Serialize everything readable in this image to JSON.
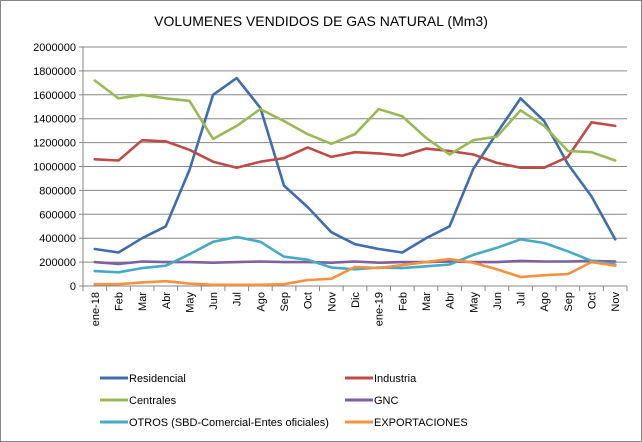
{
  "chart_data": {
    "type": "line",
    "title": "VOLUMENES VENDIDOS DE GAS NATURAL (Mm3)",
    "xlabel": "",
    "ylabel": "",
    "ylim": [
      0,
      2000000
    ],
    "yticks": [
      "0",
      "200000",
      "400000",
      "600000",
      "800000",
      "1000000",
      "1200000",
      "1400000",
      "1600000",
      "1800000",
      "2000000"
    ],
    "grid": true,
    "legend_position": "bottom",
    "categories": [
      "ene-18",
      "Feb",
      "Mar",
      "Abr",
      "May",
      "Jun",
      "Jul",
      "Ago",
      "Sep",
      "Oct",
      "Nov",
      "Dic",
      "ene-19",
      "Feb",
      "Mar",
      "Abr",
      "May",
      "Jun",
      "Jul",
      "Ago",
      "Sep",
      "Oct",
      "Nov"
    ],
    "series": [
      {
        "name": "Residencial",
        "color": "#4472C4",
        "stroke": "#3F6DAE",
        "values": [
          310000,
          280000,
          400000,
          500000,
          970000,
          1600000,
          1740000,
          1490000,
          840000,
          660000,
          450000,
          350000,
          310000,
          280000,
          400000,
          500000,
          980000,
          1280000,
          1570000,
          1380000,
          1020000,
          750000,
          390000
        ]
      },
      {
        "name": "Industria",
        "color": "#BE4B48",
        "values": [
          1060000,
          1050000,
          1220000,
          1210000,
          1140000,
          1040000,
          990000,
          1040000,
          1070000,
          1160000,
          1080000,
          1120000,
          1110000,
          1090000,
          1150000,
          1130000,
          1100000,
          1030000,
          990000,
          990000,
          1080000,
          1370000,
          1340000
        ]
      },
      {
        "name": "Centrales",
        "color": "#98B954",
        "values": [
          1720000,
          1570000,
          1600000,
          1570000,
          1550000,
          1230000,
          1340000,
          1480000,
          1380000,
          1270000,
          1190000,
          1270000,
          1480000,
          1420000,
          1240000,
          1100000,
          1220000,
          1250000,
          1470000,
          1340000,
          1130000,
          1120000,
          1050000
        ]
      },
      {
        "name": "GNC",
        "color": "#7D60A0",
        "values": [
          200000,
          185000,
          205000,
          200000,
          200000,
          195000,
          200000,
          205000,
          200000,
          200000,
          195000,
          205000,
          195000,
          200000,
          200000,
          205000,
          200000,
          200000,
          210000,
          205000,
          205000,
          210000,
          205000
        ]
      },
      {
        "name": "OTROS (SBD-Comercial-Entes oficiales)",
        "color": "#46AAC5",
        "values": [
          125000,
          115000,
          150000,
          170000,
          265000,
          370000,
          410000,
          370000,
          245000,
          220000,
          155000,
          140000,
          155000,
          150000,
          165000,
          180000,
          260000,
          320000,
          390000,
          360000,
          290000,
          210000,
          180000
        ]
      },
      {
        "name": "EXPORTACIONES",
        "color": "#F69240",
        "values": [
          15000,
          15000,
          30000,
          40000,
          20000,
          10000,
          10000,
          10000,
          15000,
          50000,
          60000,
          160000,
          150000,
          175000,
          200000,
          225000,
          195000,
          140000,
          75000,
          90000,
          100000,
          200000,
          170000
        ]
      }
    ]
  }
}
